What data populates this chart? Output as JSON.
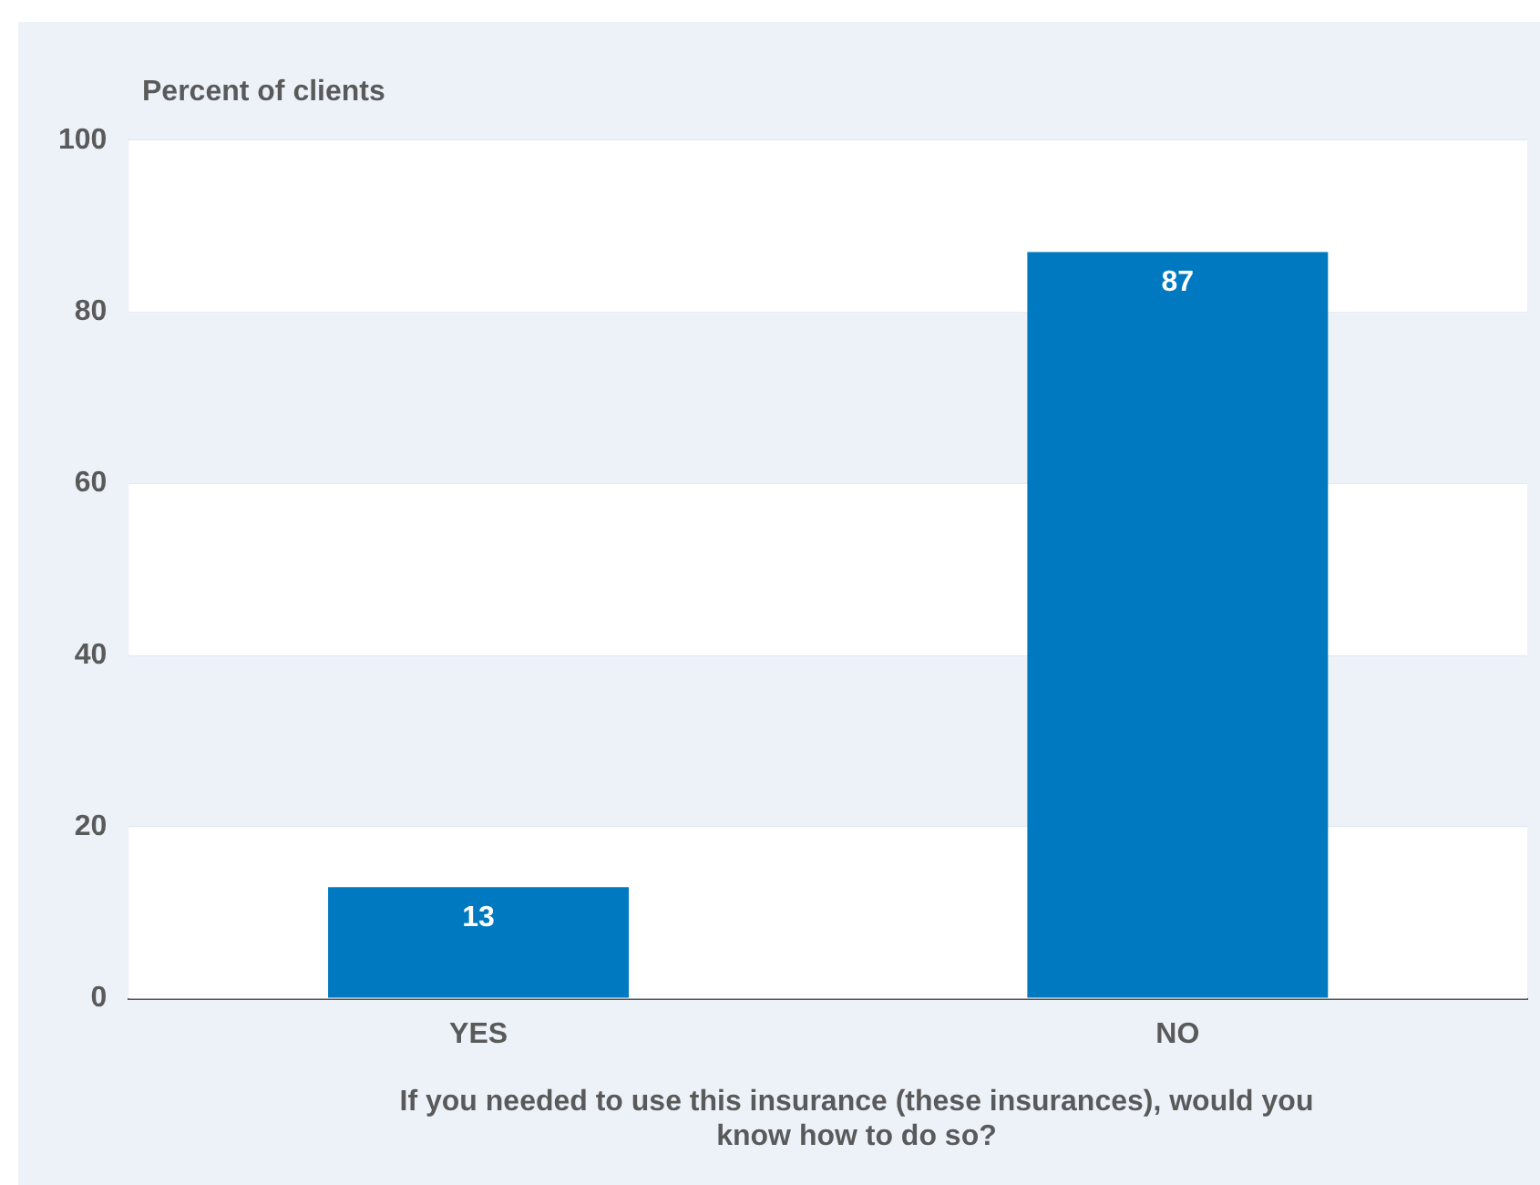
{
  "chart_data": {
    "type": "bar",
    "ylabel": "Percent of clients",
    "xlabel": "If you needed to use this insurance (these insurances), would you know how to do so?",
    "categories": [
      "YES",
      "NO"
    ],
    "values": [
      13,
      87
    ],
    "color": "#0079c1",
    "ylim": [
      0,
      100
    ],
    "yticks": [
      0,
      20,
      40,
      60,
      80,
      100
    ],
    "grid": true,
    "data_labels": true,
    "legend": false
  }
}
